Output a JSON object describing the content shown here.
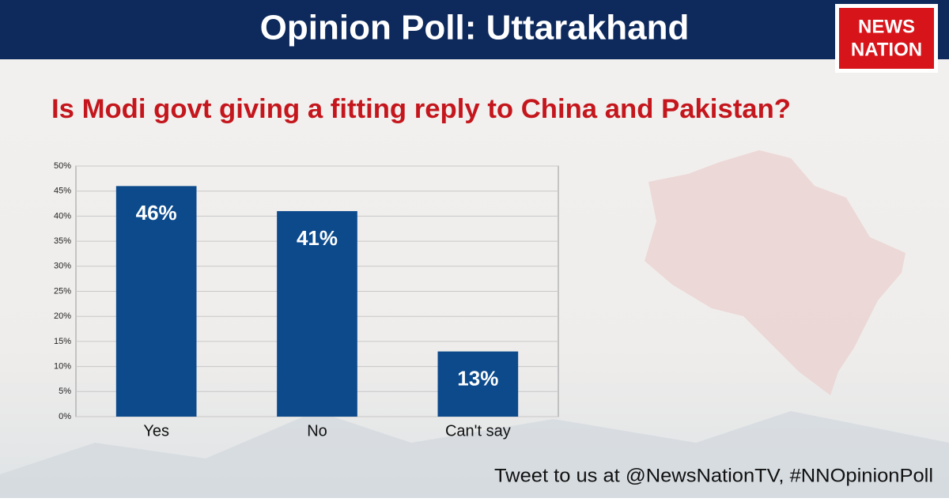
{
  "header": {
    "title": "Opinion Poll: Uttarakhand"
  },
  "logo": {
    "line1": "NEWS",
    "line2": "NATION"
  },
  "footer": "Tweet to us at @NewsNationTV, #NNOpinionPoll",
  "chart_data": {
    "type": "bar",
    "title": "Is Modi govt giving a fitting reply to China and Pakistan?",
    "categories": [
      "Yes",
      "No",
      "Can't say"
    ],
    "values": [
      46,
      41,
      13
    ],
    "value_labels": [
      "46%",
      "41%",
      "13%"
    ],
    "color": "#0c4a8c",
    "ylim": [
      0,
      50
    ],
    "yticks": [
      {
        "value": 0,
        "label": "0%"
      },
      {
        "value": 5,
        "label": "5%"
      },
      {
        "value": 10,
        "label": "10%"
      },
      {
        "value": 15,
        "label": "15%"
      },
      {
        "value": 20,
        "label": "20%"
      },
      {
        "value": 25,
        "label": "25%"
      },
      {
        "value": 30,
        "label": "30%"
      },
      {
        "value": 35,
        "label": "35%"
      },
      {
        "value": 40,
        "label": "40%"
      },
      {
        "value": 45,
        "label": "45%"
      },
      {
        "value": 50,
        "label": "50%"
      }
    ],
    "grid": true
  }
}
